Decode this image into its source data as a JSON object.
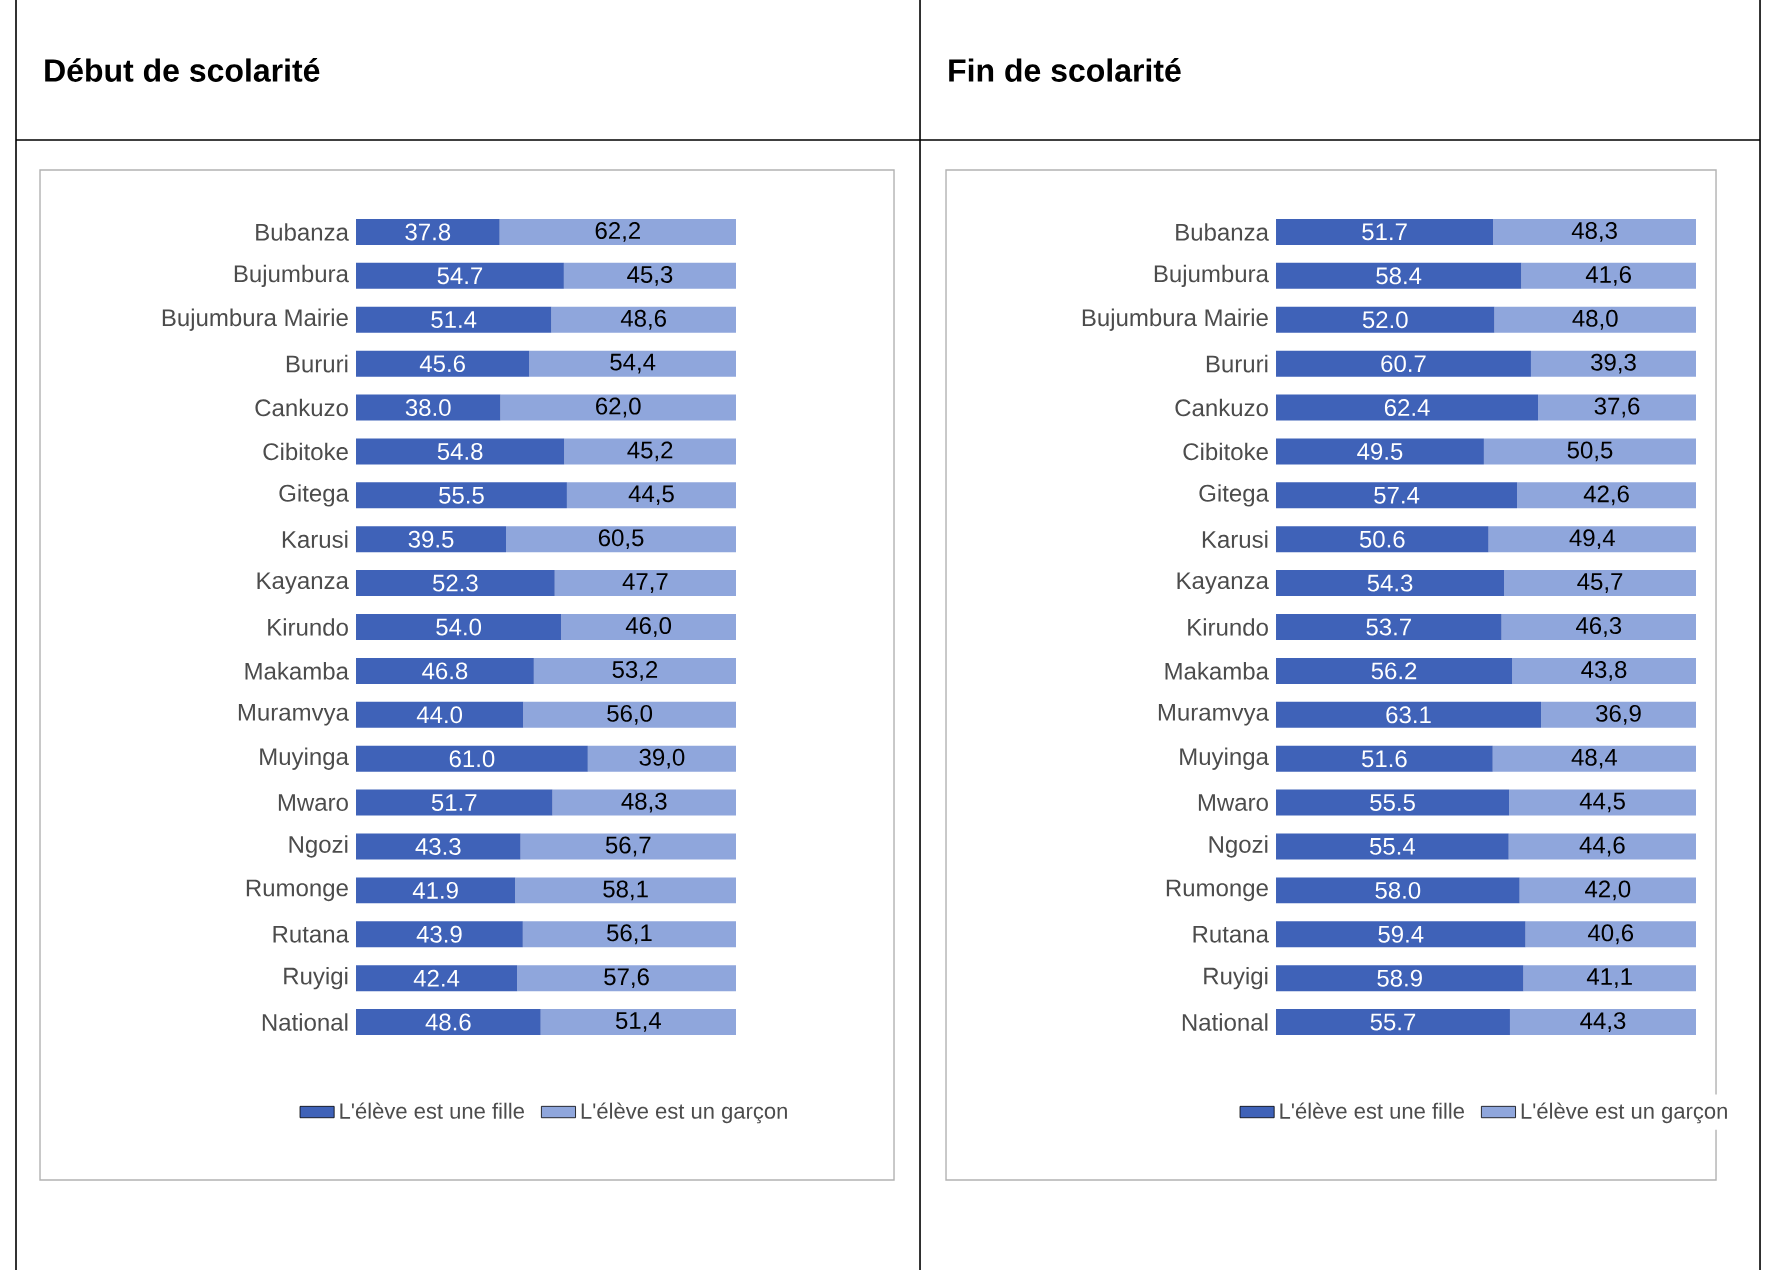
{
  "chart_data": [
    {
      "type": "bar",
      "title": "Début de scolarité",
      "orientation": "horizontal",
      "stacked": true,
      "legend": "bottom",
      "xlim": [
        0,
        100
      ],
      "categories": [
        "Bubanza",
        "Bujumbura",
        "Bujumbura Mairie",
        "Bururi",
        "Cankuzo",
        "Cibitoke",
        "Gitega",
        "Karusi",
        "Kayanza",
        "Kirundo",
        "Makamba",
        "Muramvya",
        "Muyinga",
        "Mwaro",
        "Ngozi",
        "Rumonge",
        "Rutana",
        "Ruyigi",
        "National"
      ],
      "series": [
        {
          "name": "L'élève est une fille",
          "color": "#3f62b8",
          "values": [
            37.8,
            54.7,
            51.4,
            45.6,
            38.0,
            54.8,
            55.5,
            39.5,
            52.3,
            54.0,
            46.8,
            44.0,
            61.0,
            51.7,
            43.3,
            41.9,
            43.9,
            42.4,
            48.6
          ],
          "value_labels": [
            "37.8",
            "54.7",
            "51.4",
            "45.6",
            "38.0",
            "54.8",
            "55.5",
            "39.5",
            "52.3",
            "54.0",
            "46.8",
            "44.0",
            "61.0",
            "51.7",
            "43.3",
            "41.9",
            "43.9",
            "42.4",
            "48.6"
          ]
        },
        {
          "name": "L'élève est un garçon",
          "color": "#8fa6dc",
          "values": [
            62.2,
            45.3,
            48.6,
            54.4,
            62.0,
            45.2,
            44.5,
            60.5,
            47.7,
            46.0,
            53.2,
            56.0,
            39.0,
            48.3,
            56.7,
            58.1,
            56.1,
            57.6,
            51.4
          ],
          "value_labels": [
            "62,2",
            "45,3",
            "48,6",
            "54,4",
            "62,0",
            "45,2",
            "44,5",
            "60,5",
            "47,7",
            "46,0",
            "53,2",
            "56,0",
            "39,0",
            "48,3",
            "56,7",
            "58,1",
            "56,1",
            "57,6",
            "51,4"
          ]
        }
      ]
    },
    {
      "type": "bar",
      "title": "Fin de scolarité",
      "orientation": "horizontal",
      "stacked": true,
      "legend": "bottom",
      "xlim": [
        0,
        100
      ],
      "categories": [
        "Bubanza",
        "Bujumbura",
        "Bujumbura Mairie",
        "Bururi",
        "Cankuzo",
        "Cibitoke",
        "Gitega",
        "Karusi",
        "Kayanza",
        "Kirundo",
        "Makamba",
        "Muramvya",
        "Muyinga",
        "Mwaro",
        "Ngozi",
        "Rumonge",
        "Rutana",
        "Ruyigi",
        "National"
      ],
      "series": [
        {
          "name": "L'élève est une fille",
          "color": "#3f62b8",
          "values": [
            51.7,
            58.4,
            52.0,
            60.7,
            62.4,
            49.5,
            57.4,
            50.6,
            54.3,
            53.7,
            56.2,
            63.1,
            51.6,
            55.5,
            55.4,
            58.0,
            59.4,
            58.9,
            55.7
          ],
          "value_labels": [
            "51.7",
            "58.4",
            "52.0",
            "60.7",
            "62.4",
            "49.5",
            "57.4",
            "50.6",
            "54.3",
            "53.7",
            "56.2",
            "63.1",
            "51.6",
            "55.5",
            "55.4",
            "58.0",
            "59.4",
            "58.9",
            "55.7"
          ]
        },
        {
          "name": "L'élève est un garçon",
          "color": "#8fa6dc",
          "values": [
            48.3,
            41.6,
            48.0,
            39.3,
            37.6,
            50.5,
            42.6,
            49.4,
            45.7,
            46.3,
            43.8,
            36.9,
            48.4,
            44.5,
            44.6,
            42.0,
            40.6,
            41.1,
            44.3
          ],
          "value_labels": [
            "48,3",
            "41,6",
            "48,0",
            "39,3",
            "37,6",
            "50,5",
            "42,6",
            "49,4",
            "45,7",
            "46,3",
            "43,8",
            "36,9",
            "48,4",
            "44,5",
            "44,6",
            "42,0",
            "40,6",
            "41,1",
            "44,3"
          ]
        }
      ]
    }
  ]
}
